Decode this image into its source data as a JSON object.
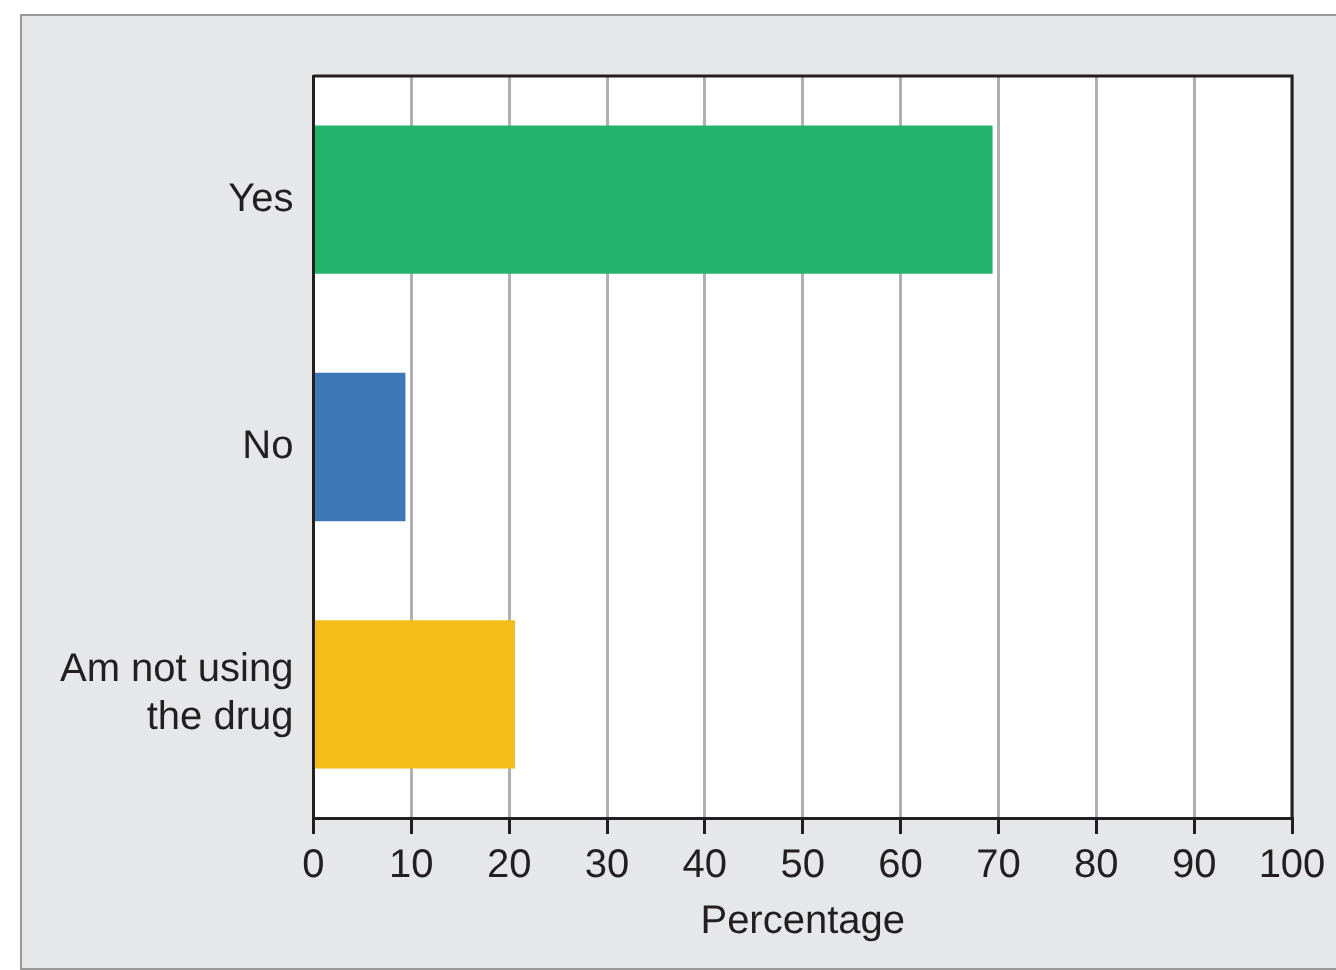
{
  "chart_data": {
    "type": "bar",
    "orientation": "horizontal",
    "xlabel": "Percentage",
    "categories": [
      "Yes",
      "No",
      "Am not using the drug"
    ],
    "values": [
      69.4,
      9.4,
      20.6
    ],
    "colors": [
      "#23b36a",
      "#3d77b5",
      "#f5bc1a"
    ],
    "xlim": [
      0,
      100
    ],
    "xticks": [
      0,
      10,
      20,
      30,
      40,
      50,
      60,
      70,
      80,
      90,
      100
    ],
    "grid": "x",
    "legend": false
  }
}
